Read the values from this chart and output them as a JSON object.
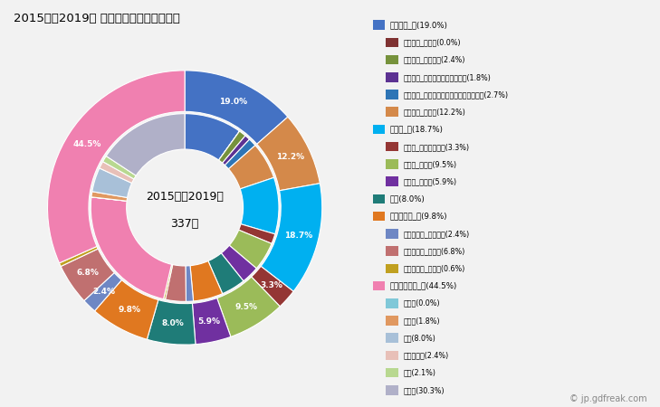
{
  "title": "2015年～2019年 横瀬町の女性の死因構成",
  "center_text_line1": "2015年～2019年",
  "center_text_line2": "337人",
  "outer_segments": [
    {
      "label": "悪性腫瘍_計(19.0%)",
      "value": 19.0,
      "color": "#4472C4"
    },
    {
      "label": "悪性腫瘍_その他(12.2%)",
      "value": 12.2,
      "color": "#D4894A"
    },
    {
      "label": "心疾患_計(18.7%)",
      "value": 18.7,
      "color": "#00B0F0"
    },
    {
      "label": "心疾患_急性心筋梗塞(3.3%)",
      "value": 3.3,
      "color": "#943634"
    },
    {
      "label": "心疾患_心不全(9.5%)",
      "value": 9.5,
      "color": "#9BBB59"
    },
    {
      "label": "心疾患_その他(5.9%)",
      "value": 5.9,
      "color": "#7030A0"
    },
    {
      "label": "肺炎(8.0%)",
      "value": 8.0,
      "color": "#1F7C78"
    },
    {
      "label": "脳血管疾患_計(9.8%)",
      "value": 9.8,
      "color": "#E07820"
    },
    {
      "label": "脳血管疾患_脳内出血(2.4%)",
      "value": 2.4,
      "color": "#6E87C4"
    },
    {
      "label": "脳血管疾患_脳梗塞(6.8%)",
      "value": 6.8,
      "color": "#C07070"
    },
    {
      "label": "脳血管疾患_その他(0.6%)",
      "value": 0.6,
      "color": "#C0A020"
    },
    {
      "label": "その他の死因_計(44.5%)",
      "value": 44.5,
      "color": "#F080B0"
    }
  ],
  "inner_segments": [
    {
      "label": "悪性腫瘍_計(19.0%)",
      "value": 19.0,
      "color": "#4472C4"
    },
    {
      "label": "悪性腫瘍_胃がん(0.0%)",
      "value": 0.001,
      "color": "#7F3232"
    },
    {
      "label": "悪性腫瘍_大腸がん(2.4%)",
      "value": 2.4,
      "color": "#76923C"
    },
    {
      "label": "悪性腫瘍_肝がん・肝内胆管がん(1.8%)",
      "value": 1.8,
      "color": "#5C3292"
    },
    {
      "label": "悪性腫瘍_気管がん・気管支がん・肺がん(2.7%)",
      "value": 2.7,
      "color": "#2E75B6"
    },
    {
      "label": "悪性腫瘍_その他(12.2%)",
      "value": 12.2,
      "color": "#D4894A"
    },
    {
      "label": "心疾患_計(18.7%)",
      "value": 18.7,
      "color": "#00B0F0"
    },
    {
      "label": "心疾患_急性心筋梗塞(3.3%)",
      "value": 3.3,
      "color": "#943634"
    },
    {
      "label": "心疾患_心不全(9.5%)",
      "value": 9.5,
      "color": "#9BBB59"
    },
    {
      "label": "心疾患_その他(5.9%)",
      "value": 5.9,
      "color": "#7030A0"
    },
    {
      "label": "肺炎(8.0%)",
      "value": 8.0,
      "color": "#1F7C78"
    },
    {
      "label": "脳血管疾患_計(9.8%)",
      "value": 9.8,
      "color": "#E07820"
    },
    {
      "label": "脳血管疾患_脳内出血(2.4%)",
      "value": 2.4,
      "color": "#6E87C4"
    },
    {
      "label": "脳血管疾患_脳梗塞(6.8%)",
      "value": 6.8,
      "color": "#C07070"
    },
    {
      "label": "脳血管疾患_その他(0.6%)",
      "value": 0.6,
      "color": "#C0A020"
    },
    {
      "label": "その他の死因_計(44.5%)",
      "value": 44.5,
      "color": "#F080B0"
    },
    {
      "label": "肝疾患(0.0%)",
      "value": 0.001,
      "color": "#80C8D8"
    },
    {
      "label": "腎不全(1.8%)",
      "value": 1.8,
      "color": "#E09860"
    },
    {
      "label": "老衰(8.0%)",
      "value": 8.0,
      "color": "#A8C0D8"
    },
    {
      "label": "不慮の事故(2.4%)",
      "value": 2.4,
      "color": "#E8C0B8"
    },
    {
      "label": "自殺(2.1%)",
      "value": 2.1,
      "color": "#B8D890"
    },
    {
      "label": "その他(30.3%)",
      "value": 30.3,
      "color": "#B0B0C8"
    }
  ],
  "legend_entries": [
    {
      "label": "悪性腫瘍_計(19.0%)",
      "color": "#4472C4",
      "indent": false
    },
    {
      "label": "悪性腫瘍_胃がん(0.0%)",
      "color": "#7F3232",
      "indent": true
    },
    {
      "label": "悪性腫瘍_大腸がん(2.4%)",
      "color": "#76923C",
      "indent": true
    },
    {
      "label": "悪性腫瘍_肝がん・肝内胆管がん(1.8%)",
      "color": "#5C3292",
      "indent": true
    },
    {
      "label": "悪性腫瘍_気管がん・気管支がん・肺がん(2.7%)",
      "color": "#2E75B6",
      "indent": true
    },
    {
      "label": "悪性腫瘍_その他(12.2%)",
      "color": "#D4894A",
      "indent": true
    },
    {
      "label": "心疾患_計(18.7%)",
      "color": "#00B0F0",
      "indent": false
    },
    {
      "label": "心疾患_急性心筋梗塞(3.3%)",
      "color": "#943634",
      "indent": true
    },
    {
      "label": "心疾患_心不全(9.5%)",
      "color": "#9BBB59",
      "indent": true
    },
    {
      "label": "心疾患_その他(5.9%)",
      "color": "#7030A0",
      "indent": true
    },
    {
      "label": "肺炎(8.0%)",
      "color": "#1F7C78",
      "indent": false
    },
    {
      "label": "脳血管疾患_計(9.8%)",
      "color": "#E07820",
      "indent": false
    },
    {
      "label": "脳血管疾患_脳内出血(2.4%)",
      "color": "#6E87C4",
      "indent": true
    },
    {
      "label": "脳血管疾患_脳梗塞(6.8%)",
      "color": "#C07070",
      "indent": true
    },
    {
      "label": "脳血管疾患_その他(0.6%)",
      "color": "#C0A020",
      "indent": true
    },
    {
      "label": "その他の死因_計(44.5%)",
      "color": "#F080B0",
      "indent": false
    },
    {
      "label": "肝疾患(0.0%)",
      "color": "#80C8D8",
      "indent": true
    },
    {
      "label": "腎不全(1.8%)",
      "color": "#E09860",
      "indent": true
    },
    {
      "label": "老衰(8.0%)",
      "color": "#A8C0D8",
      "indent": true
    },
    {
      "label": "不慮の事故(2.4%)",
      "color": "#E8C0B8",
      "indent": true
    },
    {
      "label": "自殺(2.1%)",
      "color": "#B8D890",
      "indent": true
    },
    {
      "label": "その他(30.3%)",
      "color": "#B0B0C8",
      "indent": true
    }
  ],
  "background_color": "#F2F2F2",
  "watermark": "© jp.gdfreak.com"
}
